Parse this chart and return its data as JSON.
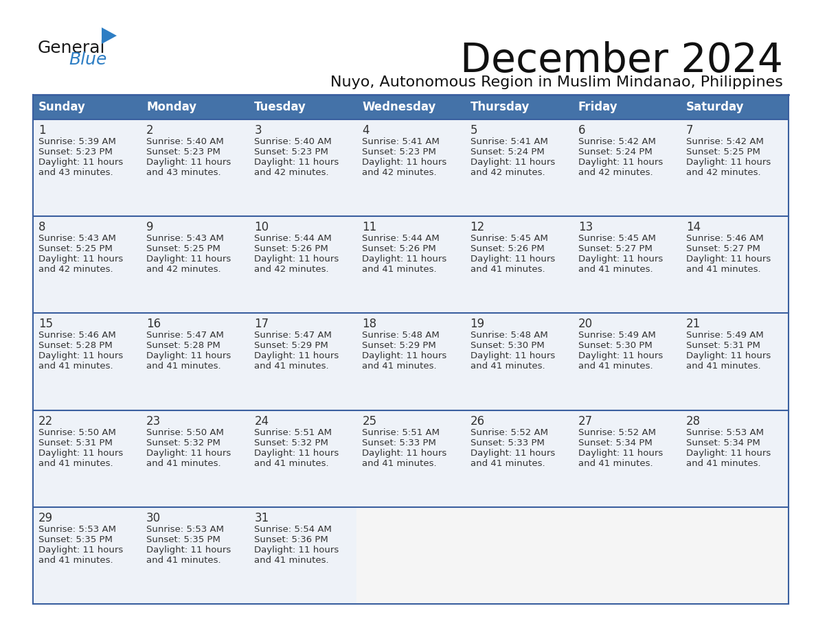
{
  "title": "December 2024",
  "subtitle": "Nuyo, Autonomous Region in Muslim Mindanao, Philippines",
  "header_bg_color": "#4472A8",
  "header_text_color": "#FFFFFF",
  "cell_bg_color": "#EEF2F8",
  "cell_bg_empty": "#F5F5F5",
  "cell_text_color": "#333333",
  "day_number_color": "#333333",
  "border_color": "#3A5F9F",
  "title_color": "#111111",
  "subtitle_color": "#111111",
  "days_of_week": [
    "Sunday",
    "Monday",
    "Tuesday",
    "Wednesday",
    "Thursday",
    "Friday",
    "Saturday"
  ],
  "weeks": [
    [
      {
        "day": 1,
        "sunrise": "5:39 AM",
        "sunset": "5:23 PM",
        "daylight_hrs": 11,
        "daylight_min": 43
      },
      {
        "day": 2,
        "sunrise": "5:40 AM",
        "sunset": "5:23 PM",
        "daylight_hrs": 11,
        "daylight_min": 43
      },
      {
        "day": 3,
        "sunrise": "5:40 AM",
        "sunset": "5:23 PM",
        "daylight_hrs": 11,
        "daylight_min": 42
      },
      {
        "day": 4,
        "sunrise": "5:41 AM",
        "sunset": "5:23 PM",
        "daylight_hrs": 11,
        "daylight_min": 42
      },
      {
        "day": 5,
        "sunrise": "5:41 AM",
        "sunset": "5:24 PM",
        "daylight_hrs": 11,
        "daylight_min": 42
      },
      {
        "day": 6,
        "sunrise": "5:42 AM",
        "sunset": "5:24 PM",
        "daylight_hrs": 11,
        "daylight_min": 42
      },
      {
        "day": 7,
        "sunrise": "5:42 AM",
        "sunset": "5:25 PM",
        "daylight_hrs": 11,
        "daylight_min": 42
      }
    ],
    [
      {
        "day": 8,
        "sunrise": "5:43 AM",
        "sunset": "5:25 PM",
        "daylight_hrs": 11,
        "daylight_min": 42
      },
      {
        "day": 9,
        "sunrise": "5:43 AM",
        "sunset": "5:25 PM",
        "daylight_hrs": 11,
        "daylight_min": 42
      },
      {
        "day": 10,
        "sunrise": "5:44 AM",
        "sunset": "5:26 PM",
        "daylight_hrs": 11,
        "daylight_min": 42
      },
      {
        "day": 11,
        "sunrise": "5:44 AM",
        "sunset": "5:26 PM",
        "daylight_hrs": 11,
        "daylight_min": 41
      },
      {
        "day": 12,
        "sunrise": "5:45 AM",
        "sunset": "5:26 PM",
        "daylight_hrs": 11,
        "daylight_min": 41
      },
      {
        "day": 13,
        "sunrise": "5:45 AM",
        "sunset": "5:27 PM",
        "daylight_hrs": 11,
        "daylight_min": 41
      },
      {
        "day": 14,
        "sunrise": "5:46 AM",
        "sunset": "5:27 PM",
        "daylight_hrs": 11,
        "daylight_min": 41
      }
    ],
    [
      {
        "day": 15,
        "sunrise": "5:46 AM",
        "sunset": "5:28 PM",
        "daylight_hrs": 11,
        "daylight_min": 41
      },
      {
        "day": 16,
        "sunrise": "5:47 AM",
        "sunset": "5:28 PM",
        "daylight_hrs": 11,
        "daylight_min": 41
      },
      {
        "day": 17,
        "sunrise": "5:47 AM",
        "sunset": "5:29 PM",
        "daylight_hrs": 11,
        "daylight_min": 41
      },
      {
        "day": 18,
        "sunrise": "5:48 AM",
        "sunset": "5:29 PM",
        "daylight_hrs": 11,
        "daylight_min": 41
      },
      {
        "day": 19,
        "sunrise": "5:48 AM",
        "sunset": "5:30 PM",
        "daylight_hrs": 11,
        "daylight_min": 41
      },
      {
        "day": 20,
        "sunrise": "5:49 AM",
        "sunset": "5:30 PM",
        "daylight_hrs": 11,
        "daylight_min": 41
      },
      {
        "day": 21,
        "sunrise": "5:49 AM",
        "sunset": "5:31 PM",
        "daylight_hrs": 11,
        "daylight_min": 41
      }
    ],
    [
      {
        "day": 22,
        "sunrise": "5:50 AM",
        "sunset": "5:31 PM",
        "daylight_hrs": 11,
        "daylight_min": 41
      },
      {
        "day": 23,
        "sunrise": "5:50 AM",
        "sunset": "5:32 PM",
        "daylight_hrs": 11,
        "daylight_min": 41
      },
      {
        "day": 24,
        "sunrise": "5:51 AM",
        "sunset": "5:32 PM",
        "daylight_hrs": 11,
        "daylight_min": 41
      },
      {
        "day": 25,
        "sunrise": "5:51 AM",
        "sunset": "5:33 PM",
        "daylight_hrs": 11,
        "daylight_min": 41
      },
      {
        "day": 26,
        "sunrise": "5:52 AM",
        "sunset": "5:33 PM",
        "daylight_hrs": 11,
        "daylight_min": 41
      },
      {
        "day": 27,
        "sunrise": "5:52 AM",
        "sunset": "5:34 PM",
        "daylight_hrs": 11,
        "daylight_min": 41
      },
      {
        "day": 28,
        "sunrise": "5:53 AM",
        "sunset": "5:34 PM",
        "daylight_hrs": 11,
        "daylight_min": 41
      }
    ],
    [
      {
        "day": 29,
        "sunrise": "5:53 AM",
        "sunset": "5:35 PM",
        "daylight_hrs": 11,
        "daylight_min": 41
      },
      {
        "day": 30,
        "sunrise": "5:53 AM",
        "sunset": "5:35 PM",
        "daylight_hrs": 11,
        "daylight_min": 41
      },
      {
        "day": 31,
        "sunrise": "5:54 AM",
        "sunset": "5:36 PM",
        "daylight_hrs": 11,
        "daylight_min": 41
      },
      null,
      null,
      null,
      null
    ]
  ],
  "logo_general_color": "#1a1a1a",
  "logo_blue_color": "#2E7EC4",
  "logo_triangle_color": "#2E7EC4"
}
